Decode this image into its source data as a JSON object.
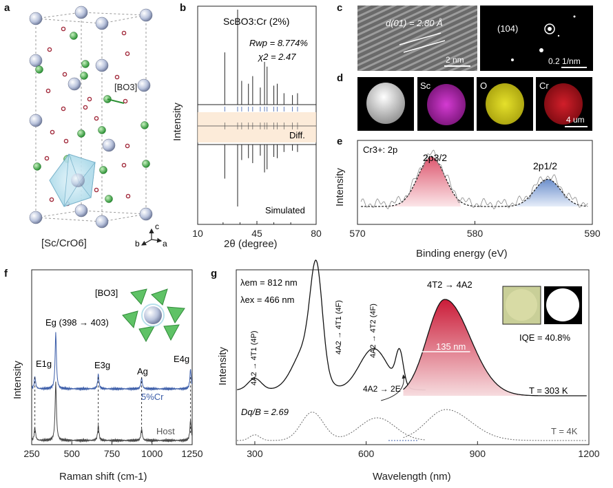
{
  "panels": {
    "a": {
      "letter": "a",
      "bo3": "[BO3]",
      "polyhedron": "[Sc/CrO6]",
      "axis_c": "c",
      "axis_b": "b",
      "axis_a": "a"
    },
    "b": {
      "letter": "b",
      "formula": "ScBO3:Cr (2%)",
      "rwp": "Rwp = 8.774%",
      "chi2": "χ2 = 2.47",
      "diff": "Diff.",
      "simulated": "Simulated",
      "ylabel": "Intensity",
      "xlabel": "2θ (degree)"
    },
    "c": {
      "letter": "c",
      "dspacing": "d(01) = 2.80 Å",
      "hrtem_scale": "2 nm",
      "saed_spot": "(104)",
      "saed_scale": "0.2 1/nm"
    },
    "d": {
      "letter": "d",
      "maps": [
        "",
        "Sc",
        "O",
        "Cr"
      ],
      "scale": "4 um"
    },
    "e": {
      "letter": "e",
      "title": "Cr3+: 2p",
      "peak1": "2p3/2",
      "peak2": "2p1/2",
      "ylabel": "Intensity",
      "xlabel": "Binding energy (eV)"
    },
    "f": {
      "letter": "f",
      "bo3": "[BO3]",
      "eg_shift": "Eg (398 → 403)",
      "modes": [
        "E1g",
        "E3g",
        "Ag",
        "E4g"
      ],
      "series_cr": "5%Cr",
      "series_host": "Host",
      "ylabel": "Intensity",
      "xlabel": "Raman shift (cm-1)"
    },
    "g": {
      "letter": "g",
      "lem": "λem = 812 nm",
      "lex": "λex = 466 nm",
      "trans_p": "4A2 → 4T1 (4P)",
      "trans_t1": "4A2 → 4T1 (4F)",
      "trans_t2": "4A2 → 4T2 (4F)",
      "trans_e": "4A2 → 2E",
      "emission": "4T2 → 4A2",
      "fwhm": "135 nm",
      "iqe": "IQE = 40.8%",
      "temp_hi": "T = 303 K",
      "dq": "Dq/B = 2.69",
      "temp_lo": "T = 4K",
      "ylabel": "Intensity",
      "xlabel": "Wavelength (nm)"
    }
  },
  "chart_data": [
    {
      "type": "line",
      "panel": "b",
      "xlabel": "2θ (degree)",
      "ylabel": "Intensity",
      "xlim": [
        10,
        80
      ],
      "xticks": [
        10,
        45,
        80
      ],
      "x_minor": [
        25,
        35,
        55,
        65
      ],
      "peaks": [
        [
          26,
          0.55
        ],
        [
          33.6,
          1.0
        ],
        [
          36,
          0.25
        ],
        [
          40,
          0.22
        ],
        [
          42.5,
          0.3
        ],
        [
          47,
          0.18
        ],
        [
          49.5,
          0.45
        ],
        [
          51,
          0.4
        ],
        [
          55,
          0.2
        ],
        [
          57,
          0.22
        ],
        [
          61,
          0.12
        ],
        [
          66,
          0.1
        ],
        [
          69,
          0.12
        ]
      ],
      "series": [
        {
          "name": "ScBO3:Cr (2%)"
        },
        {
          "name": "Diff."
        },
        {
          "name": "Simulated"
        }
      ]
    },
    {
      "type": "line",
      "panel": "e",
      "xlabel": "Binding energy (eV)",
      "ylabel": "Intensity",
      "xlim": [
        570,
        590
      ],
      "xticks": [
        570,
        580,
        590
      ],
      "peaks": [
        {
          "name": "2p3/2",
          "x": 576.3,
          "height": 1.0
        },
        {
          "name": "2p1/2",
          "x": 586.2,
          "height": 0.55
        }
      ]
    },
    {
      "type": "line",
      "panel": "f",
      "xlabel": "Raman shift (cm-1)",
      "ylabel": "Intensity",
      "xlim": [
        250,
        1250
      ],
      "xticks": [
        250,
        500,
        750,
        1000,
        1250
      ],
      "modes": [
        {
          "name": "E1g",
          "x": 270
        },
        {
          "name": "Eg",
          "x": 400
        },
        {
          "name": "E3g",
          "x": 665
        },
        {
          "name": "Ag",
          "x": 935
        },
        {
          "name": "E4g",
          "x": 1240
        }
      ],
      "series": [
        {
          "name": "5%Cr"
        },
        {
          "name": "Host"
        }
      ]
    },
    {
      "type": "line",
      "panel": "g",
      "xlabel": "Wavelength (nm)",
      "ylabel": "Intensity",
      "xlim": [
        250,
        1200
      ],
      "xticks": [
        300,
        600,
        900,
        1200
      ],
      "series": [
        {
          "name": "T = 303 K",
          "excitation_peaks": [
            [
              300,
              0.12
            ],
            [
              440,
              0.45
            ],
            [
              466,
              1.0
            ],
            [
              620,
              0.43
            ],
            [
              690,
              0.35
            ]
          ],
          "emission_peak": [
            812,
            1.0
          ],
          "fwhm_nm": 135
        },
        {
          "name": "T = 4K",
          "excitation_peaks": [
            [
              300,
              0.15
            ],
            [
              455,
              0.75
            ],
            [
              630,
              0.6
            ]
          ],
          "emission_peak": [
            815,
            0.6
          ]
        }
      ]
    }
  ]
}
